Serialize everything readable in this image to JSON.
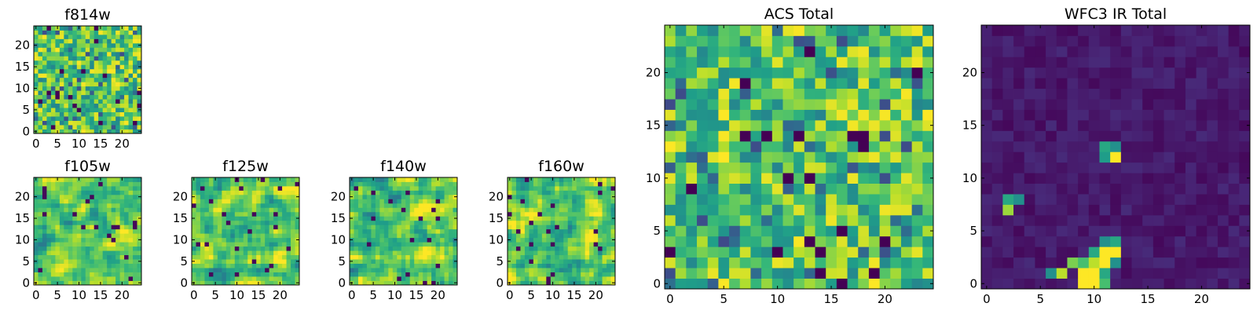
{
  "figure": {
    "background": "#ffffff",
    "colormap": "viridis"
  },
  "chart_data": [
    {
      "type": "heatmap",
      "title": "f814w",
      "size": 25,
      "pattern": "noise",
      "seed": 814,
      "xticks": [
        "0",
        "5",
        "10",
        "15",
        "20"
      ],
      "yticks": [
        "0",
        "5",
        "10",
        "15",
        "20"
      ]
    },
    {
      "type": "heatmap",
      "title": "f105w",
      "size": 25,
      "pattern": "smooth",
      "seed": 105,
      "xticks": [
        "0",
        "5",
        "10",
        "15",
        "20"
      ],
      "yticks": [
        "0",
        "5",
        "10",
        "15",
        "20"
      ]
    },
    {
      "type": "heatmap",
      "title": "f125w",
      "size": 25,
      "pattern": "smooth",
      "seed": 125,
      "xticks": [
        "0",
        "5",
        "10",
        "15",
        "20"
      ],
      "yticks": [
        "0",
        "5",
        "10",
        "15",
        "20"
      ]
    },
    {
      "type": "heatmap",
      "title": "f140w",
      "size": 25,
      "pattern": "smooth",
      "seed": 140,
      "xticks": [
        "0",
        "5",
        "10",
        "15",
        "20"
      ],
      "yticks": [
        "0",
        "5",
        "10",
        "15",
        "20"
      ]
    },
    {
      "type": "heatmap",
      "title": "f160w",
      "size": 25,
      "pattern": "smooth",
      "seed": 160,
      "xticks": [
        "0",
        "5",
        "10",
        "15",
        "20"
      ],
      "yticks": [
        "0",
        "5",
        "10",
        "15",
        "20"
      ]
    },
    {
      "type": "heatmap",
      "title": "ACS Total",
      "size": 25,
      "pattern": "acs",
      "seed": 900,
      "xticks": [
        "0",
        "5",
        "10",
        "15",
        "20"
      ],
      "yticks": [
        "0",
        "5",
        "10",
        "15",
        "20"
      ]
    },
    {
      "type": "heatmap",
      "title": "WFC3 IR Total",
      "size": 25,
      "pattern": "ir",
      "seed": 777,
      "xticks": [
        "0",
        "5",
        "10",
        "15",
        "20"
      ],
      "yticks": [
        "0",
        "5",
        "10",
        "15",
        "20"
      ],
      "bright_cells": [
        [
          9,
          0,
          1.0
        ],
        [
          10,
          0,
          1.0
        ],
        [
          11,
          0,
          0.7
        ],
        [
          7,
          1,
          0.9
        ],
        [
          9,
          1,
          1.0
        ],
        [
          10,
          1,
          1.0
        ],
        [
          11,
          1,
          0.6
        ],
        [
          6,
          1,
          0.5
        ],
        [
          8,
          2,
          0.8
        ],
        [
          9,
          2,
          0.7
        ],
        [
          10,
          2,
          0.9
        ],
        [
          11,
          2,
          1.0
        ],
        [
          12,
          2,
          0.5
        ],
        [
          11,
          3,
          1.0
        ],
        [
          12,
          3,
          1.0
        ],
        [
          10,
          3,
          0.6
        ],
        [
          11,
          4,
          0.5
        ],
        [
          12,
          4,
          0.6
        ],
        [
          2,
          7,
          0.85
        ],
        [
          2,
          8,
          0.6
        ],
        [
          3,
          8,
          0.5
        ],
        [
          11,
          12,
          0.55
        ],
        [
          12,
          12,
          1.0
        ],
        [
          11,
          13,
          0.6
        ],
        [
          12,
          13,
          0.5
        ]
      ]
    }
  ]
}
